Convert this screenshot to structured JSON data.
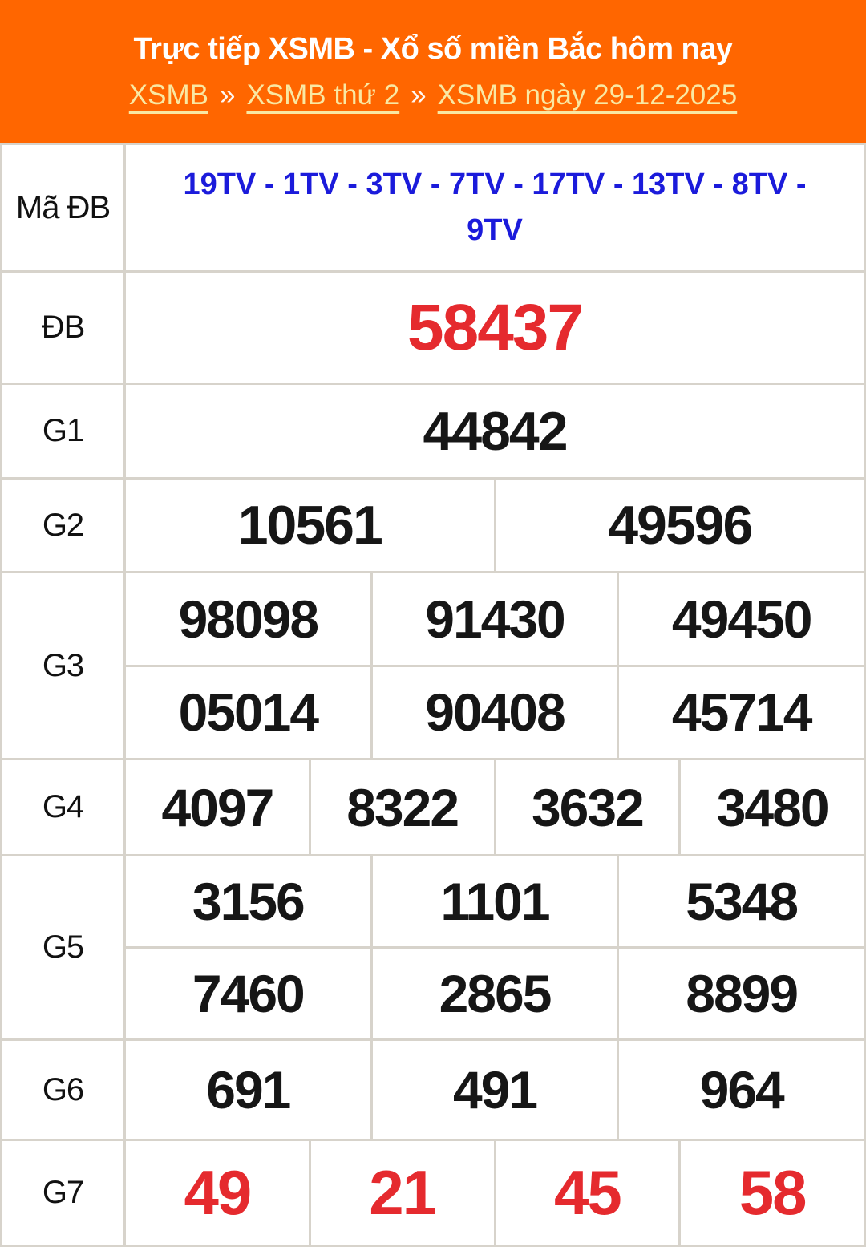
{
  "colors": {
    "accent": "#ff6600",
    "link": "#f9e8a3",
    "red": "#e52a2e",
    "blue": "#1b1bdb",
    "border": "#d7d3cb"
  },
  "header": {
    "title": "Trực tiếp XSMB - Xổ số miền Bắc hôm nay",
    "separator": "»",
    "breadcrumb": [
      {
        "label": "XSMB"
      },
      {
        "label": "XSMB thứ 2"
      },
      {
        "label": "XSMB ngày 29-12-2025"
      }
    ]
  },
  "results": {
    "ma_db": {
      "label": "Mã ĐB",
      "value": "19TV - 1TV - 3TV - 7TV - 17TV - 13TV - 8TV - 9TV"
    },
    "db": {
      "label": "ĐB",
      "value": "58437"
    },
    "g1": {
      "label": "G1",
      "values": [
        "44842"
      ]
    },
    "g2": {
      "label": "G2",
      "values": [
        "10561",
        "49596"
      ]
    },
    "g3": {
      "label": "G3",
      "row1": [
        "98098",
        "91430",
        "49450"
      ],
      "row2": [
        "05014",
        "90408",
        "45714"
      ]
    },
    "g4": {
      "label": "G4",
      "values": [
        "4097",
        "8322",
        "3632",
        "3480"
      ]
    },
    "g5": {
      "label": "G5",
      "row1": [
        "3156",
        "1101",
        "5348"
      ],
      "row2": [
        "7460",
        "2865",
        "8899"
      ]
    },
    "g6": {
      "label": "G6",
      "values": [
        "691",
        "491",
        "964"
      ]
    },
    "g7": {
      "label": "G7",
      "values": [
        "49",
        "21",
        "45",
        "58"
      ]
    }
  }
}
